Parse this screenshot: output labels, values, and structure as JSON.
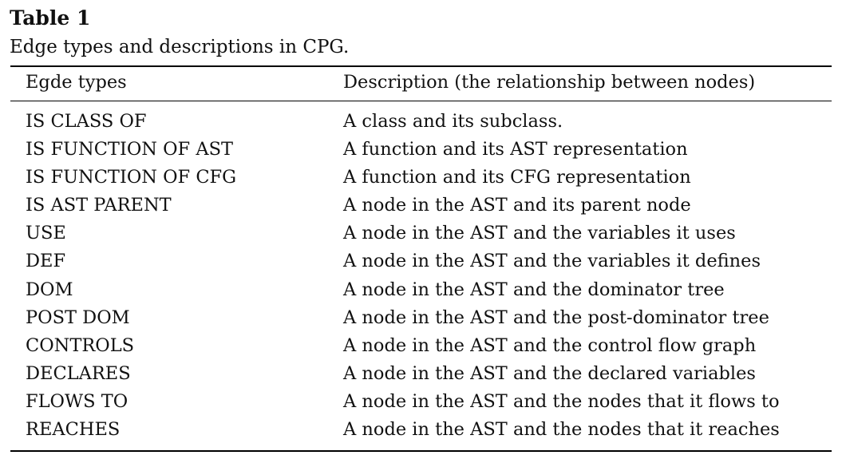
{
  "table": {
    "label": "Table 1",
    "caption": "Edge types and descriptions in CPG.",
    "headers": [
      "Egde types",
      "Description (the relationship between nodes)"
    ],
    "rows": [
      [
        "IS CLASS OF",
        "A class and its subclass."
      ],
      [
        "IS FUNCTION OF AST",
        "A function and its AST representation"
      ],
      [
        "IS FUNCTION OF CFG",
        "A function and its CFG representation"
      ],
      [
        "IS AST PARENT",
        "A node in the AST and its parent node"
      ],
      [
        "USE",
        "A node in the AST and the variables it uses"
      ],
      [
        "DEF",
        "A node in the AST and the variables it defines"
      ],
      [
        "DOM",
        "A node in the AST and the dominator tree"
      ],
      [
        "POST DOM",
        "A node in the AST and the post-dominator tree"
      ],
      [
        "CONTROLS",
        "A node in the AST and the control flow graph"
      ],
      [
        "DECLARES",
        "A node in the AST and the declared variables"
      ],
      [
        "FLOWS TO",
        "A node in the AST and the nodes that it flows to"
      ],
      [
        "REACHES",
        "A node in the AST and the nodes that it reaches"
      ]
    ]
  }
}
